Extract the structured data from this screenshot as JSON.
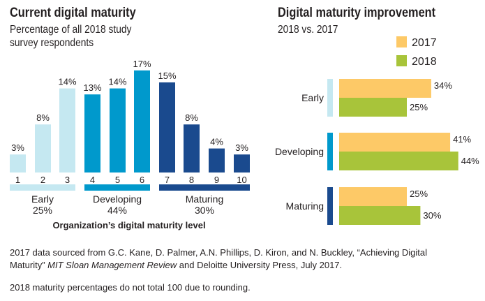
{
  "colors": {
    "early": "#c5e8f1",
    "developing": "#0099cc",
    "maturing": "#1a4a8e",
    "y2017": "#fdc967",
    "y2018": "#a8c43a"
  },
  "left": {
    "title": "Current digital maturity",
    "subtitle": [
      "Percentage of all 2018 study",
      "survey respondents"
    ]
  },
  "right": {
    "title": "Digital maturity improvement",
    "subtitle": "2018 vs. 2017"
  },
  "chart_data": [
    {
      "type": "bar",
      "title": "Current digital maturity",
      "subtitle": "Percentage of all 2018 study survey respondents",
      "xlabel": "Organization’s digital maturity level",
      "ylabel": "",
      "categories": [
        "1",
        "2",
        "3",
        "4",
        "5",
        "6",
        "7",
        "8",
        "9",
        "10"
      ],
      "values": [
        3,
        8,
        14,
        13,
        14,
        17,
        15,
        8,
        4,
        3
      ],
      "data_labels": [
        "3%",
        "8%",
        "14%",
        "13%",
        "14%",
        "17%",
        "15%",
        "8%",
        "4%",
        "3%"
      ],
      "groups": [
        {
          "name": "Early",
          "pct": "25%",
          "levels": [
            1,
            2,
            3
          ],
          "color": "early"
        },
        {
          "name": "Developing",
          "pct": "44%",
          "levels": [
            4,
            5,
            6
          ],
          "color": "developing"
        },
        {
          "name": "Maturing",
          "pct": "30%",
          "levels": [
            7,
            8,
            9,
            10
          ],
          "color": "maturing"
        }
      ],
      "ylim": [
        0,
        17
      ],
      "grid": false
    },
    {
      "type": "bar",
      "orientation": "horizontal",
      "title": "Digital maturity improvement",
      "subtitle": "2018 vs. 2017",
      "categories": [
        "Early",
        "Developing",
        "Maturing"
      ],
      "series": [
        {
          "name": "2017",
          "values": [
            34,
            41,
            25
          ],
          "labels": [
            "34%",
            "41%",
            "25%"
          ],
          "color": "y2017"
        },
        {
          "name": "2018",
          "values": [
            25,
            44,
            30
          ],
          "labels": [
            "25%",
            "44%",
            "30%"
          ],
          "color": "y2018"
        }
      ],
      "legend": "top-right",
      "grid": false
    }
  ],
  "footnotes": [
    "2017 data sourced from G.C. Kane, D. Palmer, A.N. Phillips, D. Kiron, and N. Buckley, “Achieving Digital",
    "Maturity” ",
    "MIT Sloan Management Review",
    " and Deloitte University Press, July 2017.",
    "2018 maturity percentages do not total 100 due to rounding."
  ]
}
